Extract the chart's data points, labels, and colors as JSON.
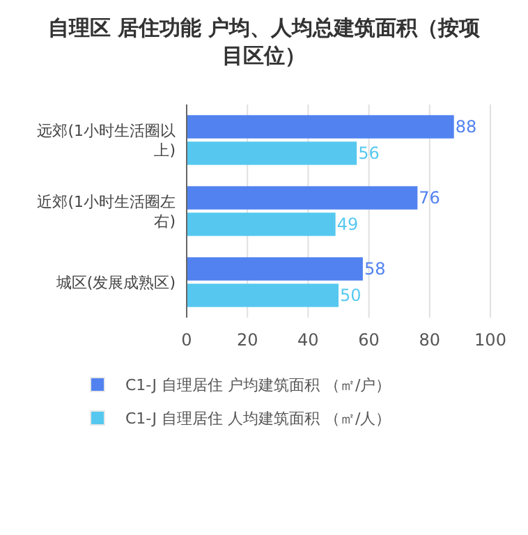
{
  "chart_data": {
    "type": "bar",
    "orientation": "horizontal",
    "title": "自理区 居住功能 户均、人均总建筑面积（按项目区位）",
    "categories": [
      "远郊(1小时生活圈以上)",
      "近郊(1小时生活圈左右)",
      "城区(发展成熟区)"
    ],
    "series": [
      {
        "name": "C1-J 自理居住 户均建筑面积 （㎡/户）",
        "color": "#5182f0",
        "values": [
          88,
          76,
          58
        ]
      },
      {
        "name": "C1-J 自理居住 人均建筑面积 （㎡/人）",
        "color": "#56c8f0",
        "values": [
          56,
          49,
          50
        ]
      }
    ],
    "xlim": [
      0,
      100
    ],
    "xticks": [
      0,
      20,
      40,
      60,
      80,
      100
    ],
    "grid": "x",
    "legend": "bottom",
    "data_labels": true
  }
}
